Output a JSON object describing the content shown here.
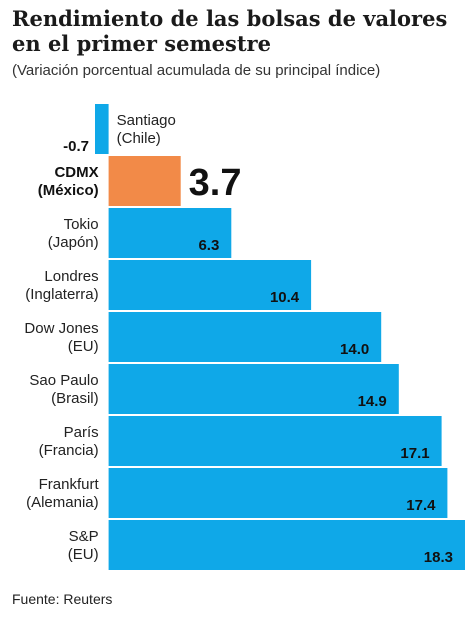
{
  "header": {
    "title": "Rendimiento de las bolsas de valores en el primer semestre",
    "subtitle": "(Variación porcentual acumulada de su principal índice)"
  },
  "footer": {
    "source": "Fuente: Reuters"
  },
  "colors": {
    "bar": "#0fa8e8",
    "highlight": "#f28a48"
  },
  "chart_data": {
    "type": "bar",
    "orientation": "horizontal",
    "title": "Rendimiento de las bolsas de valores en el primer semestre",
    "subtitle": "(Variación porcentual acumulada de su principal índice)",
    "categories": [
      [
        "Santiago",
        "(Chile)"
      ],
      [
        "CDMX",
        "(México)"
      ],
      [
        "Tokio",
        "(Japón)"
      ],
      [
        "Londres",
        "(Inglaterra)"
      ],
      [
        "Dow Jones",
        "(EU)"
      ],
      [
        "Sao Paulo",
        "(Brasil)"
      ],
      [
        "París",
        "(Francia)"
      ],
      [
        "Frankfurt",
        "(Alemania)"
      ],
      [
        "S&P",
        "(EU)"
      ]
    ],
    "values": [
      -0.7,
      3.7,
      6.3,
      10.4,
      14.0,
      14.9,
      17.1,
      17.4,
      18.3
    ],
    "value_labels": [
      "-0.7",
      "3.7",
      "6.3",
      "10.4",
      "14.0",
      "14.9",
      "17.1",
      "17.4",
      "18.3"
    ],
    "highlight_index": 1,
    "xlim": [
      -0.7,
      18.3
    ],
    "grid": false,
    "legend": "none",
    "source": "Fuente: Reuters"
  }
}
